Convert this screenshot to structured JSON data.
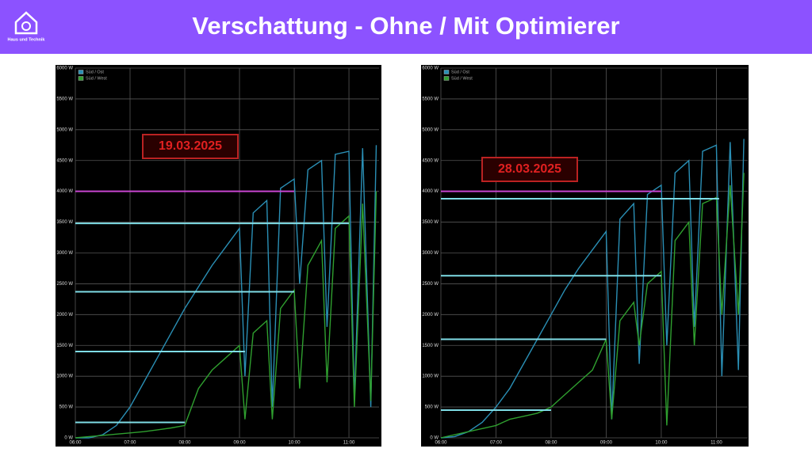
{
  "header": {
    "title": "Verschattung - Ohne / Mit Optimierer",
    "logo_text": "Haus und Technik"
  },
  "chart_data": [
    {
      "type": "line",
      "annotation": "19.03.2025",
      "xlim": [
        6,
        11.55
      ],
      "ylim": [
        0,
        6000
      ],
      "xticks": [
        {
          "value": 6,
          "label": "06:00"
        },
        {
          "value": 7,
          "label": "07:00"
        },
        {
          "value": 8,
          "label": "08:00"
        },
        {
          "value": 9,
          "label": "09:00"
        },
        {
          "value": 10,
          "label": "10:00"
        },
        {
          "value": 11,
          "label": "11:00"
        }
      ],
      "yticks": [
        {
          "value": 0,
          "label": "0 W"
        },
        {
          "value": 500,
          "label": "500 W"
        },
        {
          "value": 1000,
          "label": "1000 W"
        },
        {
          "value": 1500,
          "label": "1500 W"
        },
        {
          "value": 2000,
          "label": "2000 W"
        },
        {
          "value": 2500,
          "label": "2500 W"
        },
        {
          "value": 3000,
          "label": "3000 W"
        },
        {
          "value": 3500,
          "label": "3500 W"
        },
        {
          "value": 4000,
          "label": "4000 W"
        },
        {
          "value": 4500,
          "label": "4500 W"
        },
        {
          "value": 5000,
          "label": "5000 W"
        },
        {
          "value": 5500,
          "label": "5500 W"
        },
        {
          "value": 6000,
          "label": "6000 W"
        }
      ],
      "grid": true,
      "x": [
        6,
        6.25,
        6.5,
        6.75,
        7,
        7.25,
        7.5,
        7.75,
        8,
        8.25,
        8.5,
        8.75,
        9,
        9.1,
        9.25,
        9.5,
        9.6,
        9.75,
        10,
        10.1,
        10.25,
        10.5,
        10.6,
        10.75,
        11,
        11.1,
        11.25,
        11.4,
        11.5
      ],
      "series": [
        {
          "name": "Süd / Ost",
          "color": "#2a8fb5",
          "values": [
            0,
            0,
            50,
            200,
            500,
            900,
            1300,
            1700,
            2100,
            2450,
            2800,
            3100,
            3400,
            1000,
            3650,
            3850,
            500,
            4050,
            4200,
            2500,
            4350,
            4500,
            1800,
            4600,
            4650,
            600,
            4700,
            500,
            4750
          ]
        },
        {
          "name": "Süd / West",
          "color": "#2f9f2f",
          "values": [
            0,
            20,
            40,
            60,
            80,
            100,
            130,
            160,
            200,
            800,
            1100,
            1300,
            1500,
            300,
            1700,
            1900,
            300,
            2100,
            2400,
            800,
            2800,
            3200,
            900,
            3400,
            3600,
            500,
            3800,
            600,
            4000
          ]
        }
      ],
      "ref_lines": [
        {
          "y": 4000,
          "x": [
            6,
            10
          ],
          "color": "#c845d0"
        },
        {
          "y": 3480,
          "x": [
            6,
            11
          ],
          "color": "#7fdde6"
        },
        {
          "y": 2370,
          "x": [
            6,
            10
          ],
          "color": "#7fdde6"
        },
        {
          "y": 1400,
          "x": [
            6,
            9.1
          ],
          "color": "#7fdde6"
        },
        {
          "y": 250,
          "x": [
            6,
            8
          ],
          "color": "#7fdde6"
        }
      ]
    },
    {
      "type": "line",
      "annotation": "28.03.2025",
      "xlim": [
        6,
        11.57
      ],
      "ylim": [
        0,
        6000
      ],
      "xticks": [
        {
          "value": 6,
          "label": "06:00"
        },
        {
          "value": 7,
          "label": "07:00"
        },
        {
          "value": 8,
          "label": "08:00"
        },
        {
          "value": 9,
          "label": "09:00"
        },
        {
          "value": 10,
          "label": "10:00"
        },
        {
          "value": 11,
          "label": "11:00"
        }
      ],
      "yticks": [
        {
          "value": 0,
          "label": "0 W"
        },
        {
          "value": 500,
          "label": "500 W"
        },
        {
          "value": 1000,
          "label": "1000 W"
        },
        {
          "value": 1500,
          "label": "1500 W"
        },
        {
          "value": 2000,
          "label": "2000 W"
        },
        {
          "value": 2500,
          "label": "2500 W"
        },
        {
          "value": 3000,
          "label": "3000 W"
        },
        {
          "value": 3500,
          "label": "3500 W"
        },
        {
          "value": 4000,
          "label": "4000 W"
        },
        {
          "value": 4500,
          "label": "4500 W"
        },
        {
          "value": 5000,
          "label": "5000 W"
        },
        {
          "value": 5500,
          "label": "5500 W"
        },
        {
          "value": 6000,
          "label": "6000 W"
        }
      ],
      "grid": true,
      "x": [
        6,
        6.25,
        6.5,
        6.75,
        7,
        7.25,
        7.5,
        7.75,
        8,
        8.25,
        8.5,
        8.75,
        9,
        9.1,
        9.25,
        9.5,
        9.6,
        9.75,
        10,
        10.1,
        10.25,
        10.5,
        10.6,
        10.75,
        11,
        11.1,
        11.25,
        11.4,
        11.5
      ],
      "series": [
        {
          "name": "Süd / Ost",
          "color": "#2a8fb5",
          "values": [
            0,
            20,
            100,
            250,
            500,
            800,
            1200,
            1600,
            2000,
            2400,
            2750,
            3050,
            3350,
            300,
            3550,
            3800,
            1200,
            3950,
            4100,
            1500,
            4300,
            4500,
            1800,
            4650,
            4750,
            1000,
            4800,
            1100,
            4850
          ]
        },
        {
          "name": "Süd / West",
          "color": "#2f9f2f",
          "values": [
            0,
            50,
            100,
            150,
            200,
            300,
            350,
            400,
            500,
            700,
            900,
            1100,
            1600,
            300,
            1900,
            2200,
            1500,
            2500,
            2700,
            200,
            3200,
            3500,
            1500,
            3800,
            3900,
            2000,
            4100,
            2000,
            4300
          ]
        }
      ],
      "ref_lines": [
        {
          "y": 4000,
          "x": [
            6,
            10
          ],
          "color": "#c845d0"
        },
        {
          "y": 3880,
          "x": [
            6,
            11.05
          ],
          "color": "#7fdde6"
        },
        {
          "y": 2630,
          "x": [
            6,
            10
          ],
          "color": "#7fdde6"
        },
        {
          "y": 1600,
          "x": [
            6,
            9
          ],
          "color": "#7fdde6"
        },
        {
          "y": 450,
          "x": [
            6,
            8
          ],
          "color": "#7fdde6"
        }
      ]
    }
  ]
}
